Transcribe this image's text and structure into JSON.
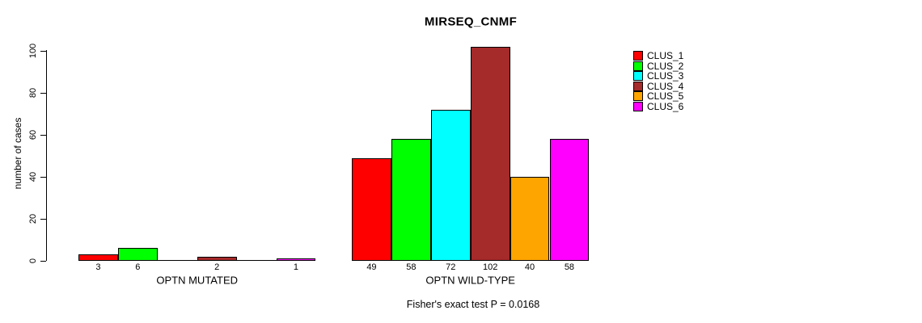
{
  "title": "MIRSEQ_CNMF",
  "footnote": "Fisher's exact test P = 0.0168",
  "chart_data": {
    "type": "bar",
    "title": "MIRSEQ_CNMF",
    "xlabel": "",
    "ylabel": "number of cases",
    "ylim": [
      0,
      100
    ],
    "yticks": [
      0,
      20,
      40,
      60,
      80,
      100
    ],
    "grid": false,
    "legend_position": "right-outside",
    "background": "#ffffff",
    "categories": [
      "OPTN MUTATED",
      "OPTN WILD-TYPE"
    ],
    "series": [
      {
        "name": "CLUS_1",
        "color": "#FF0000",
        "values": [
          3,
          49
        ]
      },
      {
        "name": "CLUS_2",
        "color": "#00FF00",
        "values": [
          6,
          58
        ]
      },
      {
        "name": "CLUS_3",
        "color": "#00FFFF",
        "values": [
          0,
          72
        ]
      },
      {
        "name": "CLUS_4",
        "color": "#A52A2A",
        "values": [
          2,
          102
        ]
      },
      {
        "name": "CLUS_5",
        "color": "#FFA500",
        "values": [
          0,
          40
        ]
      },
      {
        "name": "CLUS_6",
        "color": "#FF00FF",
        "values": [
          1,
          58
        ]
      }
    ],
    "bar_labels": [
      [
        "3",
        "6",
        "",
        "2",
        "",
        "1"
      ],
      [
        "49",
        "58",
        "72",
        "102",
        "40",
        "58"
      ]
    ],
    "annotation": "Fisher's exact test P = 0.0168"
  }
}
